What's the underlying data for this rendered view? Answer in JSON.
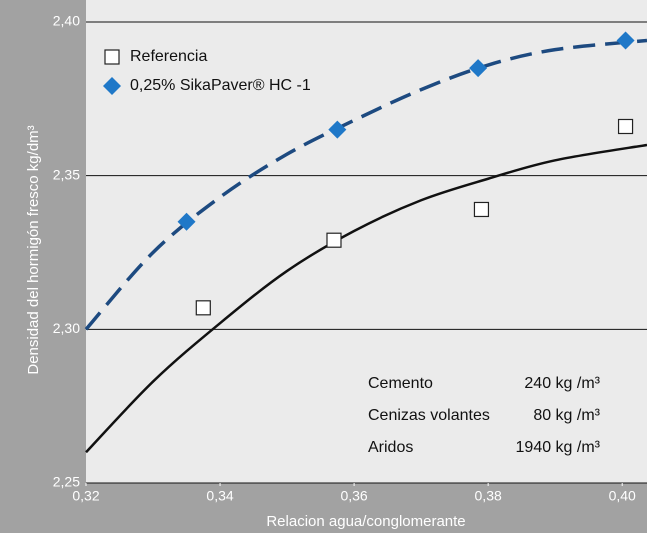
{
  "chart_data": {
    "type": "scatter",
    "x_label": "Relacion agua/conglomerante",
    "y_label": "Densidad del hormigón fresco kg/dm³",
    "xlim": [
      0.32,
      0.4037
    ],
    "ylim": [
      2.25,
      2.4
    ],
    "xticks": [
      {
        "value": 0.32,
        "label": "0,32"
      },
      {
        "value": 0.34,
        "label": "0,34"
      },
      {
        "value": 0.36,
        "label": "0,36"
      },
      {
        "value": 0.38,
        "label": "0,38"
      },
      {
        "value": 0.4,
        "label": "0,40"
      }
    ],
    "yticks": [
      {
        "value": 2.25,
        "label": "2,25"
      },
      {
        "value": 2.3,
        "label": "2,30"
      },
      {
        "value": 2.35,
        "label": "2,35"
      },
      {
        "value": 2.4,
        "label": "2,40"
      }
    ],
    "grid": true,
    "legend": "upper left",
    "series": [
      {
        "name": "Referencia",
        "marker": "square",
        "color": "#222222",
        "x": [
          0.3375,
          0.357,
          0.379,
          0.4005
        ],
        "values": [
          2.307,
          2.329,
          2.339,
          2.366
        ],
        "fit_x": [
          0.32,
          0.33,
          0.34,
          0.35,
          0.36,
          0.37,
          0.38,
          0.39,
          0.4037
        ],
        "fit_y": [
          2.26,
          2.283,
          2.302,
          2.319,
          2.332,
          2.342,
          2.349,
          2.355,
          2.36
        ]
      },
      {
        "name": "0,25% SikaPaver® HC -1",
        "marker": "diamond",
        "color": "#1f78c8",
        "x": [
          0.335,
          0.3575,
          0.3785,
          0.4005
        ],
        "values": [
          2.335,
          2.365,
          2.385,
          2.394
        ],
        "fit_x": [
          0.32,
          0.33,
          0.34,
          0.35,
          0.36,
          0.37,
          0.38,
          0.39,
          0.4037
        ],
        "fit_y": [
          2.3,
          2.325,
          2.343,
          2.357,
          2.368,
          2.378,
          2.386,
          2.391,
          2.394
        ]
      }
    ],
    "annotation_table": [
      [
        "Cemento",
        "240 kg /m³"
      ],
      [
        "Cenizas volantes",
        "80 kg /m³"
      ],
      [
        "Aridos",
        "1940 kg /m³"
      ]
    ]
  }
}
